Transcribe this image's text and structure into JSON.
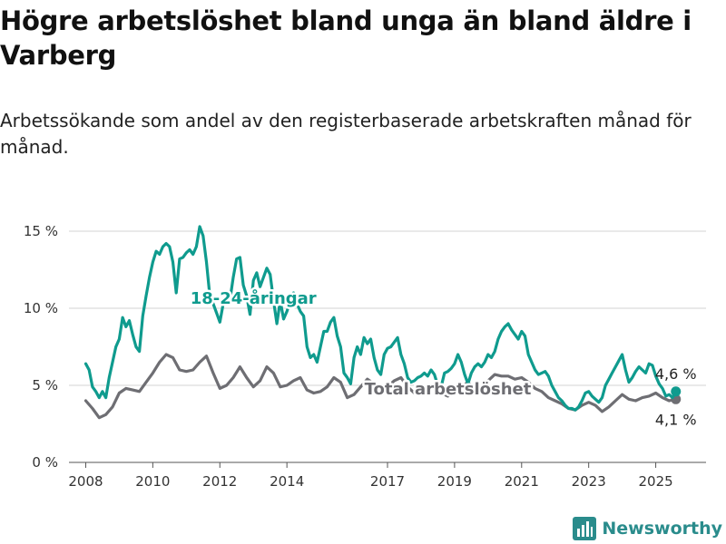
{
  "title": "Högre arbetslöshet bland unga än bland äldre i Varberg",
  "subtitle": "Arbetssökande som andel av den registerbaserade arbetskraften månad för månad.",
  "brand": "Newsworthy",
  "colors": {
    "youth": "#0f9b8e",
    "total": "#6e6e73",
    "grid": "#d3d3d3"
  },
  "chart_data": {
    "type": "line",
    "x_unit": "year",
    "xlim": [
      2007.5,
      2026.5
    ],
    "ylim": [
      0,
      16
    ],
    "y_ticks": [
      {
        "value": 0,
        "label": "0 %"
      },
      {
        "value": 5,
        "label": "5 %"
      },
      {
        "value": 10,
        "label": "10 %"
      },
      {
        "value": 15,
        "label": "15 %"
      }
    ],
    "x_ticks": [
      {
        "value": 2008,
        "label": "2008"
      },
      {
        "value": 2010,
        "label": "2010"
      },
      {
        "value": 2012,
        "label": "2012"
      },
      {
        "value": 2014,
        "label": "2014"
      },
      {
        "value": 2017,
        "label": "2017"
      },
      {
        "value": 2019,
        "label": "2019"
      },
      {
        "value": 2021,
        "label": "2021"
      },
      {
        "value": 2023,
        "label": "2023"
      },
      {
        "value": 2025,
        "label": "2025"
      }
    ],
    "series": [
      {
        "name": "18-24-åringar",
        "color": "#0f9b8e",
        "label_pos": {
          "x": 2013.0,
          "y": 10.3
        },
        "end_label": "4,6 %",
        "points": [
          [
            2008.0,
            6.4
          ],
          [
            2008.1,
            6.0
          ],
          [
            2008.2,
            4.9
          ],
          [
            2008.3,
            4.6
          ],
          [
            2008.4,
            4.2
          ],
          [
            2008.5,
            4.6
          ],
          [
            2008.6,
            4.2
          ],
          [
            2008.7,
            5.5
          ],
          [
            2008.8,
            6.5
          ],
          [
            2008.9,
            7.5
          ],
          [
            2009.0,
            8.0
          ],
          [
            2009.1,
            9.4
          ],
          [
            2009.2,
            8.8
          ],
          [
            2009.3,
            9.2
          ],
          [
            2009.4,
            8.3
          ],
          [
            2009.5,
            7.5
          ],
          [
            2009.6,
            7.2
          ],
          [
            2009.7,
            9.5
          ],
          [
            2009.8,
            10.8
          ],
          [
            2009.9,
            12.0
          ],
          [
            2010.0,
            13.0
          ],
          [
            2010.1,
            13.7
          ],
          [
            2010.2,
            13.5
          ],
          [
            2010.3,
            14.0
          ],
          [
            2010.4,
            14.2
          ],
          [
            2010.5,
            14.0
          ],
          [
            2010.6,
            13.0
          ],
          [
            2010.7,
            11.0
          ],
          [
            2010.8,
            13.2
          ],
          [
            2010.9,
            13.3
          ],
          [
            2011.0,
            13.6
          ],
          [
            2011.1,
            13.8
          ],
          [
            2011.2,
            13.5
          ],
          [
            2011.3,
            14.0
          ],
          [
            2011.4,
            15.3
          ],
          [
            2011.5,
            14.7
          ],
          [
            2011.6,
            13.0
          ],
          [
            2011.7,
            10.8
          ],
          [
            2011.8,
            10.3
          ],
          [
            2011.9,
            9.7
          ],
          [
            2012.0,
            9.1
          ],
          [
            2012.1,
            10.3
          ],
          [
            2012.2,
            11.0
          ],
          [
            2012.3,
            10.5
          ],
          [
            2012.4,
            12.0
          ],
          [
            2012.5,
            13.2
          ],
          [
            2012.6,
            13.3
          ],
          [
            2012.7,
            11.5
          ],
          [
            2012.8,
            10.8
          ],
          [
            2012.9,
            9.6
          ],
          [
            2013.0,
            11.8
          ],
          [
            2013.1,
            12.3
          ],
          [
            2013.2,
            11.4
          ],
          [
            2013.3,
            12.0
          ],
          [
            2013.4,
            12.6
          ],
          [
            2013.5,
            12.2
          ],
          [
            2013.6,
            10.5
          ],
          [
            2013.7,
            9.0
          ],
          [
            2013.8,
            10.5
          ],
          [
            2013.9,
            9.3
          ],
          [
            2014.0,
            9.8
          ],
          [
            2014.1,
            10.5
          ],
          [
            2014.2,
            11.0
          ],
          [
            2014.3,
            10.3
          ],
          [
            2014.4,
            9.8
          ],
          [
            2014.5,
            9.5
          ],
          [
            2014.6,
            7.5
          ],
          [
            2014.7,
            6.8
          ],
          [
            2014.8,
            7.0
          ],
          [
            2014.9,
            6.5
          ],
          [
            2015.0,
            7.5
          ],
          [
            2015.1,
            8.5
          ],
          [
            2015.2,
            8.5
          ],
          [
            2015.3,
            9.1
          ],
          [
            2015.4,
            9.4
          ],
          [
            2015.5,
            8.2
          ],
          [
            2015.6,
            7.5
          ],
          [
            2015.7,
            5.8
          ],
          [
            2015.8,
            5.5
          ],
          [
            2015.9,
            5.1
          ],
          [
            2016.0,
            6.8
          ],
          [
            2016.1,
            7.5
          ],
          [
            2016.2,
            7.0
          ],
          [
            2016.3,
            8.1
          ],
          [
            2016.4,
            7.7
          ],
          [
            2016.5,
            8.0
          ],
          [
            2016.6,
            6.8
          ],
          [
            2016.7,
            6.0
          ],
          [
            2016.8,
            5.7
          ],
          [
            2016.9,
            7.0
          ],
          [
            2017.0,
            7.4
          ],
          [
            2017.1,
            7.5
          ],
          [
            2017.2,
            7.8
          ],
          [
            2017.3,
            8.1
          ],
          [
            2017.4,
            7.0
          ],
          [
            2017.5,
            6.4
          ],
          [
            2017.6,
            5.5
          ],
          [
            2017.7,
            5.2
          ],
          [
            2017.8,
            5.3
          ],
          [
            2017.9,
            5.5
          ],
          [
            2018.0,
            5.6
          ],
          [
            2018.1,
            5.8
          ],
          [
            2018.2,
            5.6
          ],
          [
            2018.3,
            6.0
          ],
          [
            2018.4,
            5.7
          ],
          [
            2018.5,
            5.0
          ],
          [
            2018.6,
            4.9
          ],
          [
            2018.7,
            5.8
          ],
          [
            2018.8,
            5.9
          ],
          [
            2018.9,
            6.1
          ],
          [
            2019.0,
            6.4
          ],
          [
            2019.1,
            7.0
          ],
          [
            2019.2,
            6.5
          ],
          [
            2019.3,
            5.7
          ],
          [
            2019.4,
            5.1
          ],
          [
            2019.5,
            5.8
          ],
          [
            2019.6,
            6.2
          ],
          [
            2019.7,
            6.4
          ],
          [
            2019.8,
            6.2
          ],
          [
            2019.9,
            6.5
          ],
          [
            2020.0,
            7.0
          ],
          [
            2020.1,
            6.8
          ],
          [
            2020.2,
            7.2
          ],
          [
            2020.3,
            8.0
          ],
          [
            2020.4,
            8.5
          ],
          [
            2020.5,
            8.8
          ],
          [
            2020.6,
            9.0
          ],
          [
            2020.7,
            8.6
          ],
          [
            2020.8,
            8.3
          ],
          [
            2020.9,
            8.0
          ],
          [
            2021.0,
            8.5
          ],
          [
            2021.1,
            8.2
          ],
          [
            2021.2,
            7.0
          ],
          [
            2021.3,
            6.5
          ],
          [
            2021.4,
            6.0
          ],
          [
            2021.5,
            5.7
          ],
          [
            2021.6,
            5.8
          ],
          [
            2021.7,
            5.9
          ],
          [
            2021.8,
            5.6
          ],
          [
            2021.9,
            5.0
          ],
          [
            2022.0,
            4.6
          ],
          [
            2022.1,
            4.2
          ],
          [
            2022.2,
            4.0
          ],
          [
            2022.3,
            3.7
          ],
          [
            2022.4,
            3.5
          ],
          [
            2022.5,
            3.5
          ],
          [
            2022.6,
            3.4
          ],
          [
            2022.7,
            3.6
          ],
          [
            2022.8,
            4.0
          ],
          [
            2022.9,
            4.5
          ],
          [
            2023.0,
            4.6
          ],
          [
            2023.1,
            4.3
          ],
          [
            2023.2,
            4.1
          ],
          [
            2023.3,
            3.9
          ],
          [
            2023.4,
            4.2
          ],
          [
            2023.5,
            5.0
          ],
          [
            2023.6,
            5.4
          ],
          [
            2023.7,
            5.8
          ],
          [
            2023.8,
            6.2
          ],
          [
            2023.9,
            6.6
          ],
          [
            2024.0,
            7.0
          ],
          [
            2024.1,
            6.0
          ],
          [
            2024.2,
            5.2
          ],
          [
            2024.3,
            5.5
          ],
          [
            2024.4,
            5.9
          ],
          [
            2024.5,
            6.2
          ],
          [
            2024.6,
            6.0
          ],
          [
            2024.7,
            5.8
          ],
          [
            2024.8,
            6.4
          ],
          [
            2024.9,
            6.3
          ],
          [
            2025.0,
            5.6
          ],
          [
            2025.1,
            5.1
          ],
          [
            2025.2,
            4.8
          ],
          [
            2025.3,
            4.3
          ],
          [
            2025.4,
            4.4
          ],
          [
            2025.5,
            4.2
          ],
          [
            2025.6,
            4.6
          ]
        ]
      },
      {
        "name": "Total arbetslöshet",
        "color": "#6e6e73",
        "label_pos": {
          "x": 2018.8,
          "y": 4.4
        },
        "end_label": "4,1 %",
        "points": [
          [
            2008.0,
            4.0
          ],
          [
            2008.2,
            3.5
          ],
          [
            2008.4,
            2.9
          ],
          [
            2008.6,
            3.1
          ],
          [
            2008.8,
            3.6
          ],
          [
            2009.0,
            4.5
          ],
          [
            2009.2,
            4.8
          ],
          [
            2009.4,
            4.7
          ],
          [
            2009.6,
            4.6
          ],
          [
            2009.8,
            5.2
          ],
          [
            2010.0,
            5.8
          ],
          [
            2010.2,
            6.5
          ],
          [
            2010.4,
            7.0
          ],
          [
            2010.6,
            6.8
          ],
          [
            2010.8,
            6.0
          ],
          [
            2011.0,
            5.9
          ],
          [
            2011.2,
            6.0
          ],
          [
            2011.4,
            6.5
          ],
          [
            2011.6,
            6.9
          ],
          [
            2011.8,
            5.8
          ],
          [
            2012.0,
            4.8
          ],
          [
            2012.2,
            5.0
          ],
          [
            2012.4,
            5.5
          ],
          [
            2012.6,
            6.2
          ],
          [
            2012.8,
            5.5
          ],
          [
            2013.0,
            4.9
          ],
          [
            2013.2,
            5.3
          ],
          [
            2013.4,
            6.2
          ],
          [
            2013.6,
            5.8
          ],
          [
            2013.8,
            4.9
          ],
          [
            2014.0,
            5.0
          ],
          [
            2014.2,
            5.3
          ],
          [
            2014.4,
            5.5
          ],
          [
            2014.6,
            4.7
          ],
          [
            2014.8,
            4.5
          ],
          [
            2015.0,
            4.6
          ],
          [
            2015.2,
            4.9
          ],
          [
            2015.4,
            5.5
          ],
          [
            2015.6,
            5.2
          ],
          [
            2015.8,
            4.2
          ],
          [
            2016.0,
            4.4
          ],
          [
            2016.2,
            4.9
          ],
          [
            2016.4,
            5.4
          ],
          [
            2016.6,
            5.1
          ],
          [
            2016.8,
            4.6
          ],
          [
            2017.0,
            4.9
          ],
          [
            2017.2,
            5.3
          ],
          [
            2017.4,
            5.5
          ],
          [
            2017.6,
            4.9
          ],
          [
            2017.8,
            4.5
          ],
          [
            2018.0,
            4.6
          ],
          [
            2018.2,
            4.9
          ],
          [
            2018.4,
            4.8
          ],
          [
            2018.6,
            4.5
          ],
          [
            2018.8,
            4.3
          ],
          [
            2019.0,
            4.6
          ],
          [
            2019.2,
            4.9
          ],
          [
            2019.4,
            5.2
          ],
          [
            2019.6,
            4.7
          ],
          [
            2019.8,
            4.8
          ],
          [
            2020.0,
            5.3
          ],
          [
            2020.2,
            5.7
          ],
          [
            2020.4,
            5.6
          ],
          [
            2020.6,
            5.6
          ],
          [
            2020.8,
            5.4
          ],
          [
            2021.0,
            5.5
          ],
          [
            2021.2,
            5.2
          ],
          [
            2021.4,
            4.8
          ],
          [
            2021.6,
            4.6
          ],
          [
            2021.8,
            4.2
          ],
          [
            2022.0,
            4.0
          ],
          [
            2022.2,
            3.8
          ],
          [
            2022.4,
            3.5
          ],
          [
            2022.6,
            3.4
          ],
          [
            2022.8,
            3.7
          ],
          [
            2023.0,
            3.9
          ],
          [
            2023.2,
            3.7
          ],
          [
            2023.4,
            3.3
          ],
          [
            2023.6,
            3.6
          ],
          [
            2023.8,
            4.0
          ],
          [
            2024.0,
            4.4
          ],
          [
            2024.2,
            4.1
          ],
          [
            2024.4,
            4.0
          ],
          [
            2024.6,
            4.2
          ],
          [
            2024.8,
            4.3
          ],
          [
            2025.0,
            4.5
          ],
          [
            2025.2,
            4.2
          ],
          [
            2025.4,
            4.0
          ],
          [
            2025.6,
            4.1
          ]
        ]
      }
    ]
  }
}
